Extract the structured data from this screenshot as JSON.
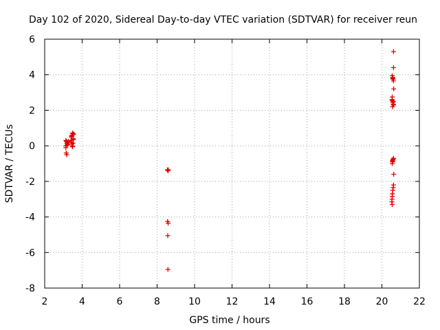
{
  "chart_data": {
    "type": "scatter",
    "title": "Day 102 of 2020, Sidereal Day-to-day VTEC variation (SDTVAR) for receiver reun",
    "xlabel": "GPS time / hours",
    "ylabel": "SDTVAR / TECUs",
    "xlim": [
      2,
      22
    ],
    "ylim": [
      -8,
      6
    ],
    "xticks": [
      "2",
      "4",
      "6",
      "8",
      "10",
      "12",
      "14",
      "16",
      "18",
      "20",
      "22"
    ],
    "yticks": [
      "6",
      "4",
      "2",
      "0",
      "-2",
      "-4",
      "-6",
      "-8"
    ],
    "grid": true,
    "marker": "+",
    "color": "#e00000",
    "series": [
      {
        "name": "SDTVAR",
        "points": [
          [
            3.13,
            0.3
          ],
          [
            3.16,
            0.25
          ],
          [
            3.18,
            0.15
          ],
          [
            3.2,
            0.05
          ],
          [
            3.13,
            -0.1
          ],
          [
            3.15,
            -0.4
          ],
          [
            3.18,
            -0.5
          ],
          [
            3.22,
            0.2
          ],
          [
            3.25,
            0.1
          ],
          [
            3.28,
            0.25
          ],
          [
            3.12,
            0.0
          ],
          [
            3.4,
            0.3
          ],
          [
            3.42,
            0.5
          ],
          [
            3.44,
            0.55
          ],
          [
            3.46,
            0.6
          ],
          [
            3.48,
            0.7
          ],
          [
            3.5,
            0.72
          ],
          [
            3.52,
            0.4
          ],
          [
            3.43,
            0.2
          ],
          [
            3.45,
            0.1
          ],
          [
            3.47,
            0.0
          ],
          [
            3.49,
            -0.05
          ],
          [
            3.51,
            0.15
          ],
          [
            3.53,
            0.35
          ],
          [
            3.55,
            0.65
          ],
          [
            8.55,
            -1.35
          ],
          [
            8.58,
            -1.4
          ],
          [
            8.6,
            -1.35
          ],
          [
            8.56,
            -4.25
          ],
          [
            8.59,
            -4.35
          ],
          [
            8.57,
            -5.05
          ],
          [
            8.58,
            -6.95
          ],
          [
            20.62,
            5.3
          ],
          [
            20.62,
            4.4
          ],
          [
            20.55,
            3.95
          ],
          [
            20.58,
            3.85
          ],
          [
            20.6,
            3.75
          ],
          [
            20.62,
            3.65
          ],
          [
            20.57,
            3.8
          ],
          [
            20.63,
            3.2
          ],
          [
            20.55,
            2.75
          ],
          [
            20.54,
            2.6
          ],
          [
            20.56,
            2.55
          ],
          [
            20.58,
            2.45
          ],
          [
            20.6,
            2.35
          ],
          [
            20.62,
            2.3
          ],
          [
            20.57,
            2.2
          ],
          [
            20.6,
            2.5
          ],
          [
            20.62,
            -0.7
          ],
          [
            20.6,
            -0.75
          ],
          [
            20.58,
            -0.8
          ],
          [
            20.56,
            -0.85
          ],
          [
            20.55,
            -1.0
          ],
          [
            20.57,
            -0.9
          ],
          [
            20.63,
            -1.6
          ],
          [
            20.62,
            -2.2
          ],
          [
            20.6,
            -2.35
          ],
          [
            20.58,
            -2.5
          ],
          [
            20.56,
            -2.7
          ],
          [
            20.55,
            -2.85
          ],
          [
            20.54,
            -3.0
          ],
          [
            20.53,
            -3.15
          ],
          [
            20.55,
            -3.3
          ]
        ]
      }
    ]
  }
}
